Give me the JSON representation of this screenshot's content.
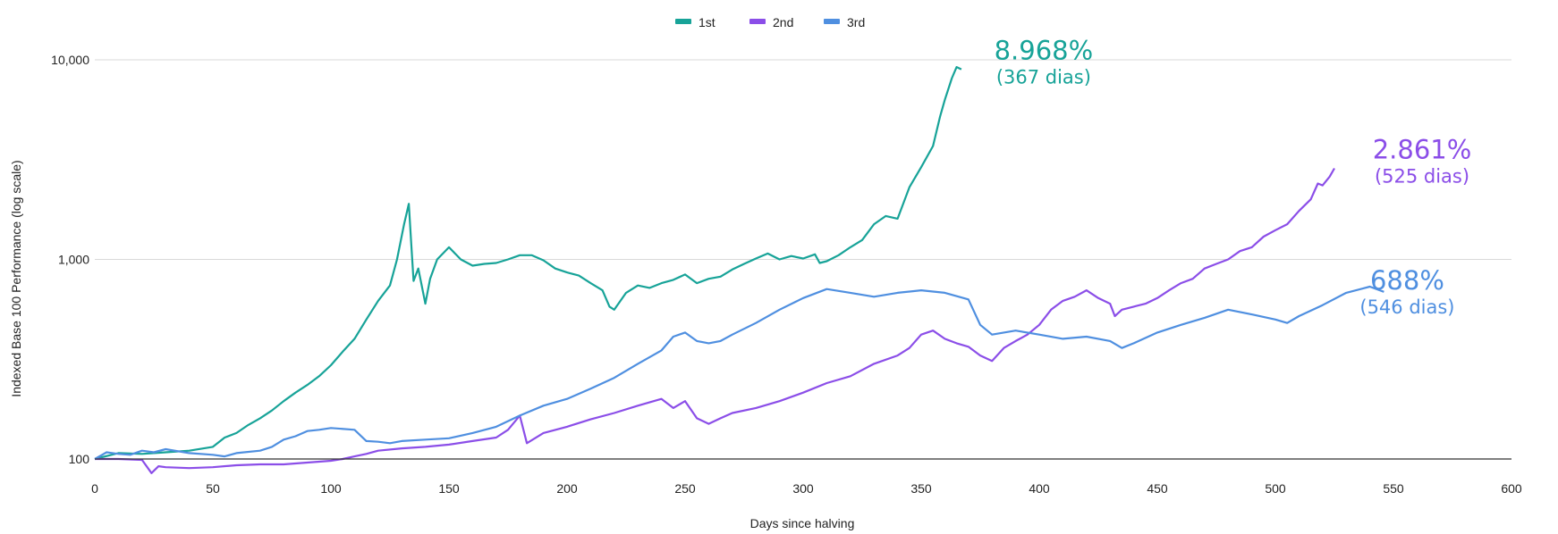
{
  "chart_data": {
    "type": "line",
    "xlabel": "Days since halving",
    "ylabel": "Indexed Base 100 Performance (log scale)",
    "y_scale": "log",
    "xlim": [
      0,
      600
    ],
    "ylim": [
      100,
      10000
    ],
    "x_ticks": [
      0,
      50,
      100,
      150,
      200,
      250,
      300,
      350,
      400,
      450,
      500,
      550,
      600
    ],
    "y_ticks": [
      100,
      1000,
      10000
    ],
    "y_tick_labels": [
      "100",
      "1,000",
      "10,000"
    ],
    "grid": "horizontal",
    "legend_position": "top-center",
    "series": [
      {
        "name": "1st",
        "color": "#17a398",
        "points": [
          [
            0,
            100
          ],
          [
            10,
            107
          ],
          [
            20,
            106
          ],
          [
            30,
            108
          ],
          [
            40,
            110
          ],
          [
            50,
            115
          ],
          [
            55,
            128
          ],
          [
            60,
            135
          ],
          [
            65,
            148
          ],
          [
            70,
            160
          ],
          [
            75,
            175
          ],
          [
            80,
            195
          ],
          [
            85,
            215
          ],
          [
            90,
            235
          ],
          [
            95,
            260
          ],
          [
            100,
            295
          ],
          [
            105,
            345
          ],
          [
            110,
            400
          ],
          [
            115,
            500
          ],
          [
            120,
            620
          ],
          [
            125,
            740
          ],
          [
            128,
            1000
          ],
          [
            131,
            1500
          ],
          [
            133,
            1900
          ],
          [
            134,
            1200
          ],
          [
            135,
            780
          ],
          [
            137,
            900
          ],
          [
            140,
            600
          ],
          [
            142,
            800
          ],
          [
            145,
            1000
          ],
          [
            150,
            1150
          ],
          [
            155,
            1000
          ],
          [
            160,
            930
          ],
          [
            165,
            950
          ],
          [
            170,
            960
          ],
          [
            175,
            1000
          ],
          [
            180,
            1050
          ],
          [
            185,
            1050
          ],
          [
            190,
            990
          ],
          [
            195,
            900
          ],
          [
            200,
            860
          ],
          [
            205,
            830
          ],
          [
            210,
            760
          ],
          [
            215,
            700
          ],
          [
            218,
            580
          ],
          [
            220,
            560
          ],
          [
            225,
            680
          ],
          [
            230,
            740
          ],
          [
            235,
            720
          ],
          [
            240,
            760
          ],
          [
            245,
            790
          ],
          [
            250,
            840
          ],
          [
            255,
            760
          ],
          [
            260,
            800
          ],
          [
            265,
            820
          ],
          [
            270,
            890
          ],
          [
            275,
            950
          ],
          [
            280,
            1010
          ],
          [
            285,
            1070
          ],
          [
            290,
            1000
          ],
          [
            295,
            1040
          ],
          [
            300,
            1010
          ],
          [
            305,
            1060
          ],
          [
            307,
            960
          ],
          [
            310,
            980
          ],
          [
            315,
            1050
          ],
          [
            320,
            1150
          ],
          [
            325,
            1250
          ],
          [
            330,
            1500
          ],
          [
            335,
            1650
          ],
          [
            340,
            1600
          ],
          [
            345,
            2300
          ],
          [
            350,
            2900
          ],
          [
            355,
            3700
          ],
          [
            358,
            5200
          ],
          [
            360,
            6300
          ],
          [
            363,
            8100
          ],
          [
            365,
            9200
          ],
          [
            367,
            8968
          ]
        ]
      },
      {
        "name": "2nd",
        "color": "#8b4ee8",
        "points": [
          [
            0,
            100
          ],
          [
            10,
            100
          ],
          [
            20,
            99
          ],
          [
            24,
            85
          ],
          [
            27,
            92
          ],
          [
            30,
            91
          ],
          [
            40,
            90
          ],
          [
            50,
            91
          ],
          [
            60,
            93
          ],
          [
            70,
            94
          ],
          [
            80,
            94
          ],
          [
            90,
            96
          ],
          [
            100,
            98
          ],
          [
            105,
            100
          ],
          [
            110,
            103
          ],
          [
            115,
            106
          ],
          [
            120,
            110
          ],
          [
            130,
            113
          ],
          [
            140,
            115
          ],
          [
            150,
            118
          ],
          [
            160,
            123
          ],
          [
            170,
            128
          ],
          [
            175,
            140
          ],
          [
            180,
            165
          ],
          [
            183,
            120
          ],
          [
            190,
            135
          ],
          [
            200,
            145
          ],
          [
            210,
            158
          ],
          [
            220,
            170
          ],
          [
            230,
            185
          ],
          [
            240,
            200
          ],
          [
            245,
            180
          ],
          [
            250,
            195
          ],
          [
            255,
            160
          ],
          [
            260,
            150
          ],
          [
            265,
            160
          ],
          [
            270,
            170
          ],
          [
            280,
            180
          ],
          [
            290,
            195
          ],
          [
            300,
            215
          ],
          [
            310,
            240
          ],
          [
            320,
            260
          ],
          [
            330,
            300
          ],
          [
            340,
            330
          ],
          [
            345,
            360
          ],
          [
            350,
            420
          ],
          [
            355,
            440
          ],
          [
            360,
            400
          ],
          [
            365,
            380
          ],
          [
            370,
            365
          ],
          [
            375,
            330
          ],
          [
            380,
            310
          ],
          [
            385,
            360
          ],
          [
            390,
            390
          ],
          [
            395,
            420
          ],
          [
            400,
            470
          ],
          [
            405,
            560
          ],
          [
            410,
            620
          ],
          [
            415,
            650
          ],
          [
            420,
            700
          ],
          [
            425,
            640
          ],
          [
            430,
            600
          ],
          [
            432,
            520
          ],
          [
            435,
            560
          ],
          [
            440,
            580
          ],
          [
            445,
            600
          ],
          [
            450,
            640
          ],
          [
            455,
            700
          ],
          [
            460,
            760
          ],
          [
            465,
            800
          ],
          [
            470,
            900
          ],
          [
            475,
            950
          ],
          [
            480,
            1000
          ],
          [
            485,
            1100
          ],
          [
            490,
            1150
          ],
          [
            495,
            1300
          ],
          [
            500,
            1400
          ],
          [
            505,
            1500
          ],
          [
            510,
            1750
          ],
          [
            515,
            2000
          ],
          [
            518,
            2400
          ],
          [
            520,
            2350
          ],
          [
            523,
            2600
          ],
          [
            525,
            2861
          ]
        ]
      },
      {
        "name": "3rd",
        "color": "#4f8fe0",
        "points": [
          [
            0,
            100
          ],
          [
            5,
            108
          ],
          [
            10,
            106
          ],
          [
            15,
            105
          ],
          [
            20,
            110
          ],
          [
            25,
            108
          ],
          [
            30,
            112
          ],
          [
            40,
            107
          ],
          [
            50,
            105
          ],
          [
            55,
            103
          ],
          [
            60,
            107
          ],
          [
            70,
            110
          ],
          [
            75,
            115
          ],
          [
            80,
            125
          ],
          [
            85,
            130
          ],
          [
            90,
            138
          ],
          [
            95,
            140
          ],
          [
            100,
            143
          ],
          [
            110,
            140
          ],
          [
            115,
            123
          ],
          [
            120,
            122
          ],
          [
            125,
            120
          ],
          [
            130,
            123
          ],
          [
            140,
            125
          ],
          [
            150,
            127
          ],
          [
            160,
            135
          ],
          [
            170,
            145
          ],
          [
            180,
            165
          ],
          [
            190,
            185
          ],
          [
            200,
            200
          ],
          [
            210,
            225
          ],
          [
            220,
            255
          ],
          [
            230,
            300
          ],
          [
            240,
            350
          ],
          [
            245,
            410
          ],
          [
            250,
            430
          ],
          [
            255,
            390
          ],
          [
            260,
            380
          ],
          [
            265,
            390
          ],
          [
            270,
            420
          ],
          [
            280,
            480
          ],
          [
            290,
            560
          ],
          [
            300,
            640
          ],
          [
            310,
            710
          ],
          [
            320,
            680
          ],
          [
            330,
            650
          ],
          [
            340,
            680
          ],
          [
            350,
            700
          ],
          [
            360,
            680
          ],
          [
            370,
            630
          ],
          [
            375,
            470
          ],
          [
            380,
            420
          ],
          [
            390,
            440
          ],
          [
            400,
            420
          ],
          [
            410,
            400
          ],
          [
            420,
            410
          ],
          [
            430,
            390
          ],
          [
            435,
            360
          ],
          [
            440,
            380
          ],
          [
            450,
            430
          ],
          [
            460,
            470
          ],
          [
            470,
            510
          ],
          [
            480,
            560
          ],
          [
            490,
            530
          ],
          [
            500,
            500
          ],
          [
            505,
            480
          ],
          [
            510,
            520
          ],
          [
            520,
            590
          ],
          [
            530,
            680
          ],
          [
            540,
            730
          ],
          [
            546,
            688
          ]
        ]
      }
    ],
    "annotations": [
      {
        "series": "1st",
        "value": "8.968%",
        "days": "(367 dias)"
      },
      {
        "series": "2nd",
        "value": "2.861%",
        "days": "(525 dias)"
      },
      {
        "series": "3rd",
        "value": "688%",
        "days": "(546 dias)"
      }
    ]
  }
}
